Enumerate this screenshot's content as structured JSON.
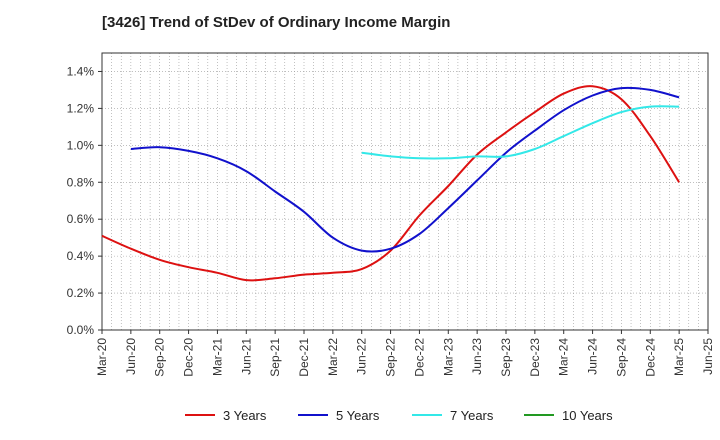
{
  "chart_data": {
    "type": "line",
    "title": "[3426]  Trend of StDev of Ordinary Income Margin",
    "xlabel": "",
    "ylabel": "",
    "ylim": [
      0,
      1.5
    ],
    "y_ticks": [
      "0.0%",
      "0.2%",
      "0.4%",
      "0.6%",
      "0.8%",
      "1.0%",
      "1.2%",
      "1.4%"
    ],
    "y_tick_values": [
      0,
      0.2,
      0.4,
      0.6,
      0.8,
      1.0,
      1.2,
      1.4
    ],
    "x_ticks": [
      "Mar-20",
      "Jun-20",
      "Sep-20",
      "Dec-20",
      "Mar-21",
      "Jun-21",
      "Sep-21",
      "Dec-21",
      "Mar-22",
      "Jun-22",
      "Sep-22",
      "Dec-22",
      "Mar-23",
      "Jun-23",
      "Sep-23",
      "Dec-23",
      "Mar-24",
      "Jun-24",
      "Sep-24",
      "Dec-24",
      "Mar-25",
      "Jun-25"
    ],
    "grid": true,
    "legend_position": "bottom",
    "series": [
      {
        "name": "3 Years",
        "color": "#dd1111",
        "values": [
          0.51,
          0.44,
          0.38,
          0.34,
          0.31,
          0.27,
          0.28,
          0.3,
          0.31,
          0.33,
          0.43,
          0.62,
          0.78,
          0.95,
          1.07,
          1.18,
          1.28,
          1.32,
          1.25,
          1.05,
          0.8,
          null
        ]
      },
      {
        "name": "5 Years",
        "color": "#1111cc",
        "values": [
          null,
          0.98,
          0.99,
          0.97,
          0.93,
          0.86,
          0.75,
          0.64,
          0.5,
          0.43,
          0.44,
          0.52,
          0.66,
          0.81,
          0.96,
          1.08,
          1.19,
          1.27,
          1.31,
          1.3,
          1.26,
          null
        ]
      },
      {
        "name": "7 Years",
        "color": "#33e8e8",
        "values": [
          null,
          null,
          null,
          null,
          null,
          null,
          null,
          null,
          null,
          0.96,
          0.94,
          0.93,
          0.93,
          0.94,
          0.94,
          0.98,
          1.05,
          1.12,
          1.18,
          1.21,
          1.21,
          null
        ]
      },
      {
        "name": "10 Years",
        "color": "#229922",
        "values": [
          null,
          null,
          null,
          null,
          null,
          null,
          null,
          null,
          null,
          null,
          null,
          null,
          null,
          null,
          null,
          null,
          null,
          null,
          null,
          null,
          null,
          null
        ]
      }
    ]
  }
}
